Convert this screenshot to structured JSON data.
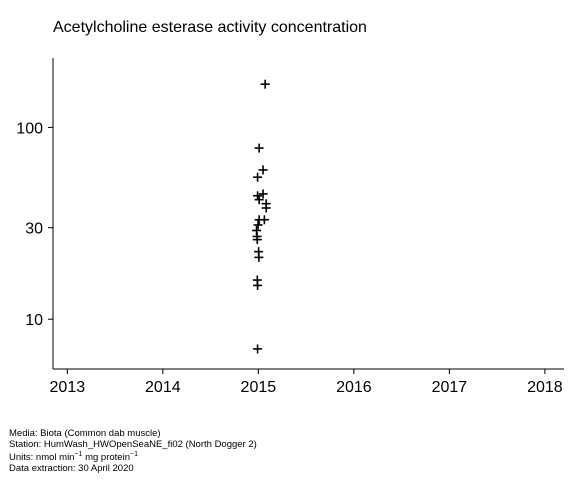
{
  "chart_data": {
    "type": "scatter",
    "title": "Acetylcholine esterase activity concentration",
    "xlabel": "",
    "ylabel": "",
    "x_ticks": [
      "2013",
      "2014",
      "2015",
      "2016",
      "2017",
      "2018"
    ],
    "xlim": [
      "2012.85",
      "2018.2"
    ],
    "y_scale": "log",
    "y_ticks": [
      10,
      30,
      100
    ],
    "ylim": [
      5.5,
      230
    ],
    "marker": "plus",
    "grid": false,
    "series": [
      {
        "points": [
          {
            "x": "2015-01-27",
            "y": 168
          },
          {
            "x": "2015-01-04",
            "y": 78
          },
          {
            "x": "2014-12-29",
            "y": 55
          },
          {
            "x": "2015-01-19",
            "y": 60
          },
          {
            "x": "2014-12-29",
            "y": 44
          },
          {
            "x": "2015-01-04",
            "y": 42
          },
          {
            "x": "2015-01-19",
            "y": 45
          },
          {
            "x": "2015-01-31",
            "y": 40
          },
          {
            "x": "2015-01-31",
            "y": 38
          },
          {
            "x": "2015-01-04",
            "y": 33
          },
          {
            "x": "2015-01-24",
            "y": 33
          },
          {
            "x": "2014-12-31",
            "y": 31
          },
          {
            "x": "2014-12-25",
            "y": 29
          },
          {
            "x": "2014-12-27",
            "y": 27
          },
          {
            "x": "2014-12-28",
            "y": 26
          },
          {
            "x": "2015-01-02",
            "y": 22.5
          },
          {
            "x": "2015-01-03",
            "y": 21
          },
          {
            "x": "2014-12-28",
            "y": 16
          },
          {
            "x": "2014-12-29",
            "y": 15
          },
          {
            "x": "2014-12-29",
            "y": 7
          }
        ]
      }
    ]
  },
  "footer": {
    "media": "Media: Biota (Common dab muscle)",
    "station": "Station: HumWash_HWOpenSeaNE_fi02 (North Dogger 2)",
    "units_prefix": "Units:  nmol min",
    "units_sup1": "−1",
    "units_middle": " mg protein",
    "units_sup2": "−1",
    "extraction": "Data extraction: 30 April 2020"
  }
}
